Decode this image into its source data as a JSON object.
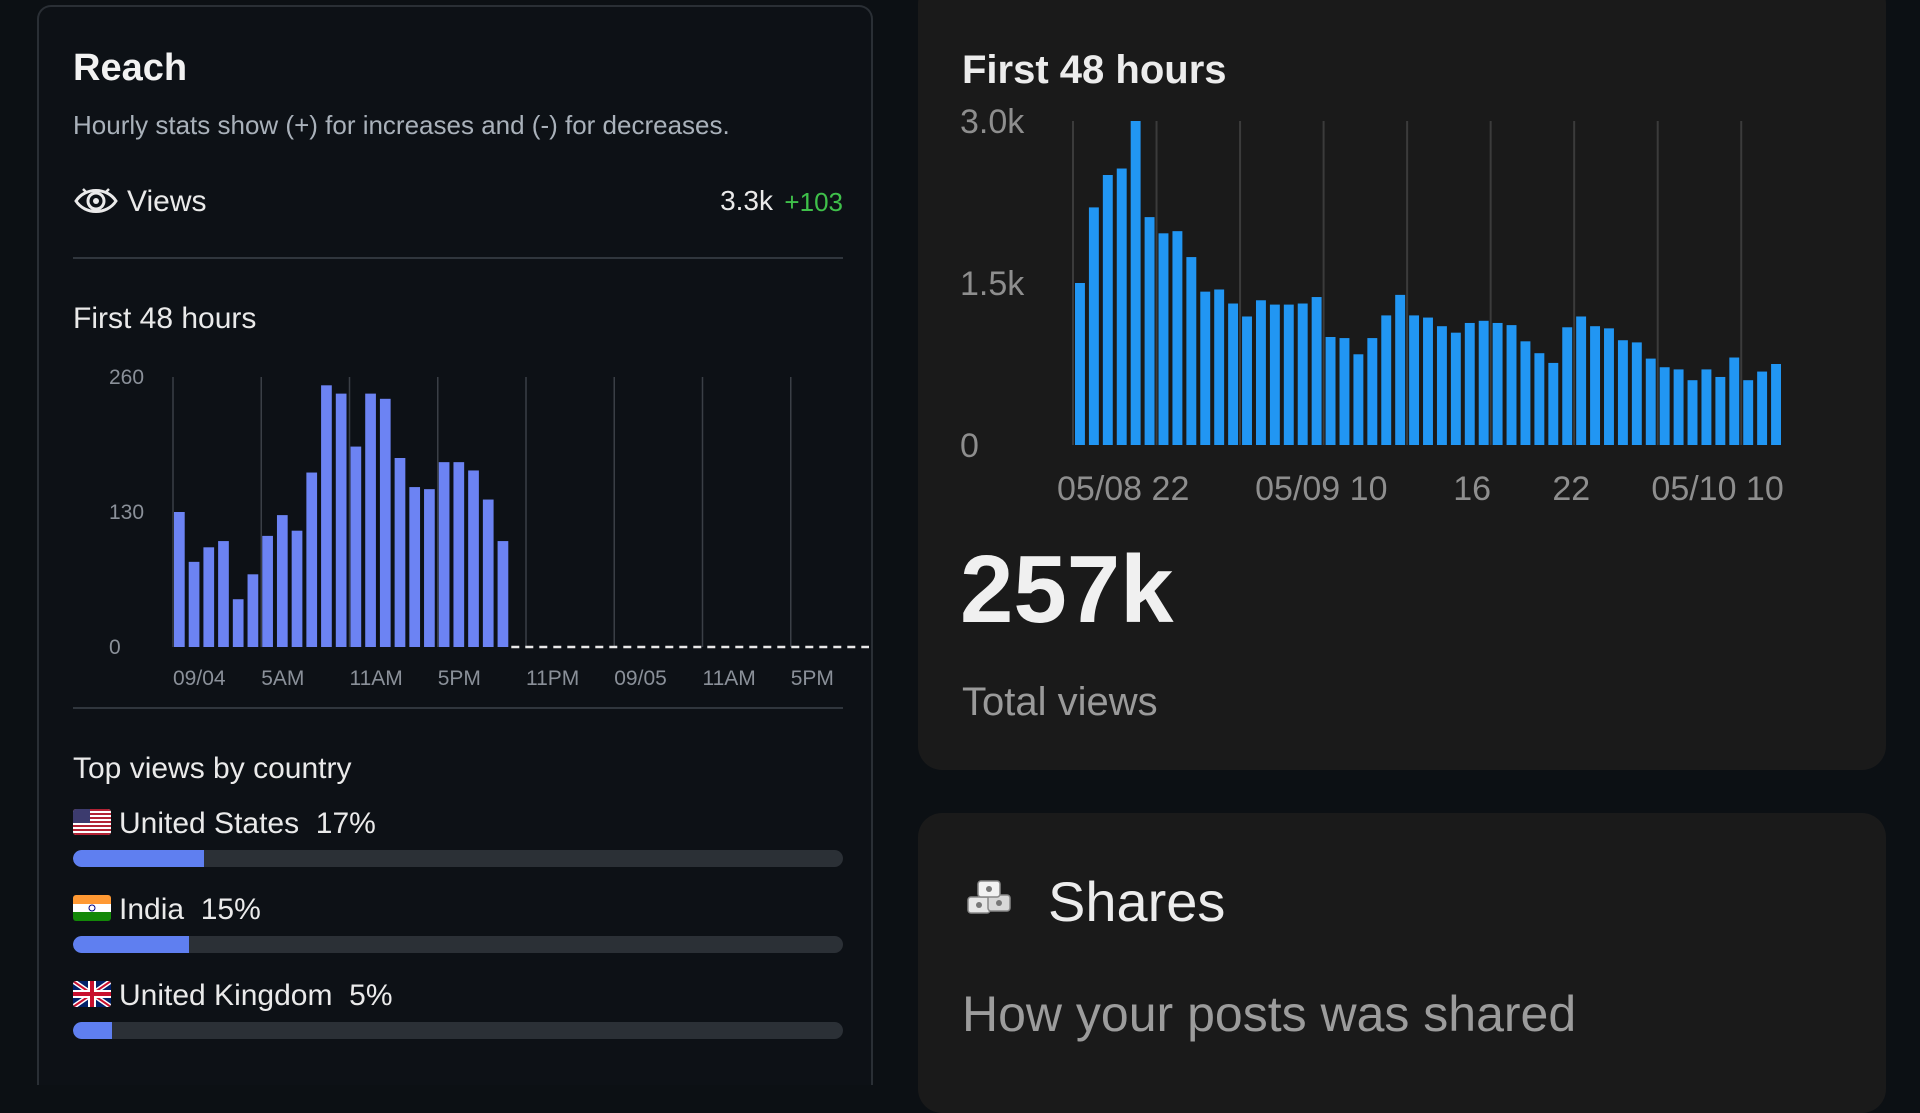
{
  "reach": {
    "title": "Reach",
    "subtitle": "Hourly stats show (+) for increases and (-) for decreases.",
    "views_label": "Views",
    "views_value": "3.3k",
    "views_delta": "+103"
  },
  "left_chart_title": "First 48 hours",
  "top_countries": {
    "title": "Top views by country",
    "items": [
      {
        "name": "United States",
        "percent": "17%",
        "share": 0.17,
        "flag": "us-flag-icon"
      },
      {
        "name": "India",
        "percent": "15%",
        "share": 0.15,
        "flag": "india-flag-icon"
      },
      {
        "name": "United Kingdom",
        "percent": "5%",
        "share": 0.05,
        "flag": "uk-flag-icon"
      }
    ]
  },
  "right_chart_title": "First 48 hours",
  "total": {
    "value": "257k",
    "label": "Total views"
  },
  "shares": {
    "title": "Shares",
    "subtitle": "How your posts was shared",
    "icon": "shares-icon"
  },
  "colors": {
    "left_bar": "#6c83f3",
    "right_bar": "#2196f3",
    "delta": "#3fc04a"
  },
  "chart_data": [
    {
      "type": "bar",
      "title": "First 48 hours",
      "xlabel": "",
      "ylabel": "",
      "ylim": [
        0,
        260
      ],
      "yticks": [
        "0",
        "130",
        "260"
      ],
      "xtick_labels": [
        "09/04",
        "5AM",
        "11AM",
        "5PM",
        "11PM",
        "09/05",
        "11AM",
        "5PM"
      ],
      "total_slots": 48,
      "values": [
        130,
        82,
        96,
        102,
        46,
        70,
        107,
        127,
        112,
        168,
        252,
        244,
        193,
        244,
        239,
        182,
        154,
        152,
        178,
        178,
        170,
        142,
        102
      ],
      "remaining": "dashed baseline"
    },
    {
      "type": "bar",
      "title": "First 48 hours",
      "xlabel": "",
      "ylabel": "",
      "ylim": [
        0,
        3000
      ],
      "yticks": [
        "0",
        "1.5k",
        "3.0k"
      ],
      "xtick_labels": [
        "05/08 22",
        "05/09 10",
        "16",
        "22",
        "05/10 10"
      ],
      "values": [
        1500,
        2200,
        2500,
        2560,
        3000,
        2110,
        1960,
        1980,
        1740,
        1420,
        1440,
        1310,
        1190,
        1340,
        1300,
        1300,
        1310,
        1370,
        1000,
        990,
        840,
        990,
        1200,
        1390,
        1200,
        1180,
        1100,
        1040,
        1130,
        1150,
        1130,
        1110,
        960,
        850,
        760,
        1090,
        1190,
        1100,
        1080,
        970,
        950,
        800,
        720,
        700,
        600,
        700,
        630,
        810,
        600,
        680,
        750
      ]
    }
  ]
}
